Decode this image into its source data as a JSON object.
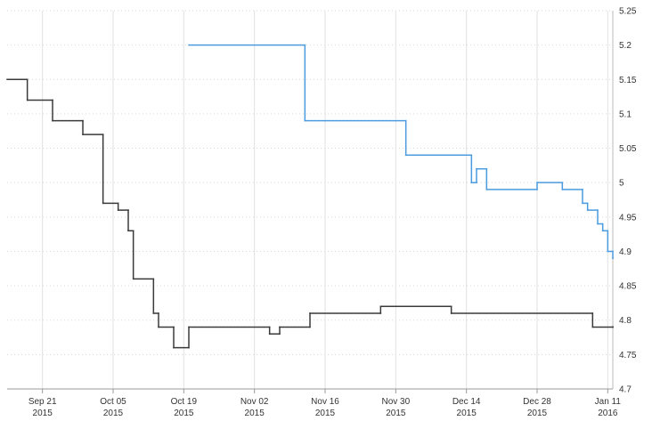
{
  "chart_data": {
    "type": "step-line",
    "xlim": [
      "2015-09-14",
      "2016-01-12"
    ],
    "xticks": [
      {
        "value": "2015-09-21",
        "label": [
          "Sep 21",
          "2015"
        ]
      },
      {
        "value": "2015-10-05",
        "label": [
          "Oct 05",
          "2015"
        ]
      },
      {
        "value": "2015-10-19",
        "label": [
          "Oct 19",
          "2015"
        ]
      },
      {
        "value": "2015-11-02",
        "label": [
          "Nov 02",
          "2015"
        ]
      },
      {
        "value": "2015-11-16",
        "label": [
          "Nov 16",
          "2015"
        ]
      },
      {
        "value": "2015-11-30",
        "label": [
          "Nov 30",
          "2015"
        ]
      },
      {
        "value": "2015-12-14",
        "label": [
          "Dec 14",
          "2015"
        ]
      },
      {
        "value": "2015-12-28",
        "label": [
          "Dec 28",
          "2015"
        ]
      },
      {
        "value": "2016-01-11",
        "label": [
          "Jan 11",
          "2016"
        ]
      }
    ],
    "ylim": [
      4.7,
      5.25
    ],
    "yticks": [
      4.7,
      4.75,
      4.8,
      4.85,
      4.9,
      4.95,
      5,
      5.05,
      5.1,
      5.15,
      5.2,
      5.25
    ],
    "y_axis_side": "right",
    "grid": true,
    "series": [
      {
        "color": "#3a3a3a",
        "x": [
          "2015-09-14",
          "2015-09-18",
          "2015-09-23",
          "2015-09-29",
          "2015-10-03",
          "2015-10-06",
          "2015-10-08",
          "2015-10-09",
          "2015-10-13",
          "2015-10-14",
          "2015-10-17",
          "2015-10-20",
          "2015-11-05",
          "2015-11-07",
          "2015-11-13",
          "2015-11-27",
          "2015-12-11",
          "2016-01-08",
          "2016-01-12"
        ],
        "values": [
          5.15,
          5.12,
          5.09,
          5.07,
          4.97,
          4.96,
          4.93,
          4.86,
          4.81,
          4.79,
          4.76,
          4.79,
          4.78,
          4.79,
          4.81,
          4.82,
          4.81,
          4.79,
          4.79
        ]
      },
      {
        "color": "#4b9be0",
        "x": [
          "2015-10-20",
          "2015-11-12",
          "2015-12-02",
          "2015-12-15",
          "2015-12-16",
          "2015-12-18",
          "2015-12-28",
          "2016-01-02",
          "2016-01-06",
          "2016-01-07",
          "2016-01-09",
          "2016-01-10",
          "2016-01-11",
          "2016-01-12"
        ],
        "values": [
          5.2,
          5.09,
          5.04,
          5,
          5.02,
          4.99,
          5,
          4.99,
          4.97,
          4.96,
          4.94,
          4.93,
          4.9,
          4.89
        ]
      }
    ]
  }
}
